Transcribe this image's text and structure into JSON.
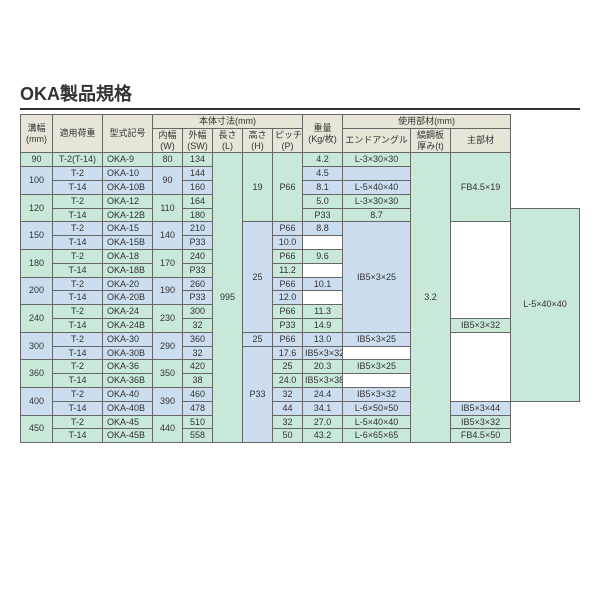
{
  "title": "OKA製品規格",
  "headers": {
    "group_dim": "本体寸法(mm)",
    "group_mat": "使用部材(mm)",
    "mizo": "溝幅\n(mm)",
    "load": "適用荷重",
    "model": "型式記号",
    "w": "内幅\n(W)",
    "sw": "外幅\n(SW)",
    "l": "長さ\n(L)",
    "h": "高さ\n(H)",
    "p": "ピッチ\n(P)",
    "weight": "重量\n(Kg/枚)",
    "angle": "エンドアングル",
    "thick": "縞鋼板\n厚み(t)",
    "main": "主部材"
  },
  "rows": [
    {
      "cls": "g",
      "mizo": "90",
      "mizoR": 1,
      "load": "T-2(T-14)",
      "model": "OKA-9",
      "w": "80",
      "wR": 1,
      "sw": "134",
      "l": "995",
      "lR": 21,
      "h": "19",
      "hR": 5,
      "p": "P66",
      "pR": 5,
      "weight": "4.2",
      "angle": "L-3×30×30",
      "angleR": 1,
      "thick": "3.2",
      "thickR": 21,
      "main": "FB4.5×19",
      "mainR": 5
    },
    {
      "cls": "b",
      "mizo": "100",
      "mizoR": 2,
      "load": "T-2",
      "model": "OKA-10",
      "w": "90",
      "wR": 2,
      "sw": "144",
      "weight": "4.5",
      "angle": "",
      "angleR": 1
    },
    {
      "cls": "b",
      "load": "T-14",
      "model": "OKA-10B",
      "sw": "160",
      "weight": "8.1",
      "angle": "L-5×40×40",
      "angleR": 1
    },
    {
      "cls": "g",
      "mizo": "120",
      "mizoR": 2,
      "load": "T-2",
      "model": "OKA-12",
      "w": "110",
      "wR": 2,
      "sw": "164",
      "weight": "5.0",
      "angle": "L-3×30×30",
      "angleR": 1
    },
    {
      "cls": "g",
      "load": "T-14",
      "model": "OKA-12B",
      "sw": "180",
      "p": "P33",
      "pR": 1,
      "weight": "8.7",
      "angle": "L-5×40×40",
      "angleR": 14
    },
    {
      "cls": "b",
      "mizo": "150",
      "mizoR": 2,
      "load": "T-2",
      "model": "OKA-15",
      "w": "140",
      "wR": 2,
      "sw": "210",
      "h": "25",
      "hR": 8,
      "p": "P66",
      "pR": 1,
      "weight": "8.8",
      "main": "IB5×3×25",
      "mainR": 8
    },
    {
      "cls": "b",
      "load": "T-14",
      "model": "OKA-15B",
      "p": "P33",
      "pR": 1,
      "weight": "10.0"
    },
    {
      "cls": "g",
      "mizo": "180",
      "mizoR": 2,
      "load": "T-2",
      "model": "OKA-18",
      "w": "170",
      "wR": 2,
      "sw": "240",
      "p": "P66",
      "pR": 1,
      "weight": "9.6"
    },
    {
      "cls": "g",
      "load": "T-14",
      "model": "OKA-18B",
      "p": "P33",
      "pR": 1,
      "weight": "11.2"
    },
    {
      "cls": "b",
      "mizo": "200",
      "mizoR": 2,
      "load": "T-2",
      "model": "OKA-20",
      "w": "190",
      "wR": 2,
      "sw": "260",
      "p": "P66",
      "pR": 1,
      "weight": "10.1"
    },
    {
      "cls": "b",
      "load": "T-14",
      "model": "OKA-20B",
      "p": "P33",
      "pR": 1,
      "weight": "12.0"
    },
    {
      "cls": "g",
      "mizo": "240",
      "mizoR": 2,
      "load": "T-2",
      "model": "OKA-24",
      "w": "230",
      "wR": 2,
      "sw": "300",
      "p": "P66",
      "pR": 1,
      "weight": "11.3"
    },
    {
      "cls": "g",
      "load": "T-14",
      "model": "OKA-24B",
      "h": "32",
      "hR": 1,
      "p": "P33",
      "pR": 1,
      "weight": "14.9",
      "main": "IB5×3×32",
      "mainR": 1
    },
    {
      "cls": "b",
      "mizo": "300",
      "mizoR": 2,
      "load": "T-2",
      "model": "OKA-30",
      "w": "290",
      "wR": 2,
      "sw": "360",
      "h": "25",
      "hR": 1,
      "p": "P66",
      "pR": 1,
      "weight": "13.0",
      "main": "IB5×3×25",
      "mainR": 1
    },
    {
      "cls": "b",
      "load": "T-14",
      "model": "OKA-30B",
      "h": "32",
      "hR": 1,
      "p": "P33",
      "pR": 7,
      "weight": "17.6",
      "main": "IB5×3×32",
      "mainR": 1
    },
    {
      "cls": "g",
      "mizo": "360",
      "mizoR": 2,
      "load": "T-2",
      "model": "OKA-36",
      "w": "350",
      "wR": 2,
      "sw": "420",
      "h": "25",
      "hR": 1,
      "weight": "20.3",
      "main": "IB5×3×25",
      "mainR": 1
    },
    {
      "cls": "g",
      "load": "T-14",
      "model": "OKA-36B",
      "h": "38",
      "hR": 1,
      "weight": "24.0",
      "main": "IB5×3×38",
      "mainR": 1
    },
    {
      "cls": "b",
      "mizo": "400",
      "mizoR": 2,
      "load": "T-2",
      "model": "OKA-40",
      "w": "390",
      "wR": 2,
      "sw": "460",
      "h": "32",
      "hR": 1,
      "weight": "24.4",
      "main": "IB5×3×32",
      "mainR": 1
    },
    {
      "cls": "b",
      "load": "T-14",
      "model": "OKA-40B",
      "sw": "478",
      "h": "44",
      "hR": 1,
      "weight": "34.1",
      "angle": "L-6×50×50",
      "angleR": 1,
      "main": "IB5×3×44",
      "mainR": 1
    },
    {
      "cls": "g",
      "mizo": "450",
      "mizoR": 2,
      "load": "T-2",
      "model": "OKA-45",
      "w": "440",
      "wR": 2,
      "sw": "510",
      "h": "32",
      "hR": 1,
      "weight": "27.0",
      "angle": "L-5×40×40",
      "angleR": 1,
      "main": "IB5×3×32",
      "mainR": 1
    },
    {
      "cls": "g",
      "load": "T-14",
      "model": "OKA-45B",
      "sw": "558",
      "h": "50",
      "hR": 1,
      "weight": "43.2",
      "angle": "L-6×65×65",
      "angleR": 1,
      "main": "FB4.5×50",
      "mainR": 1
    }
  ],
  "colWidths": [
    "32",
    "50",
    "50",
    "30",
    "30",
    "30",
    "30",
    "30",
    "40",
    "68",
    "40",
    "60"
  ]
}
